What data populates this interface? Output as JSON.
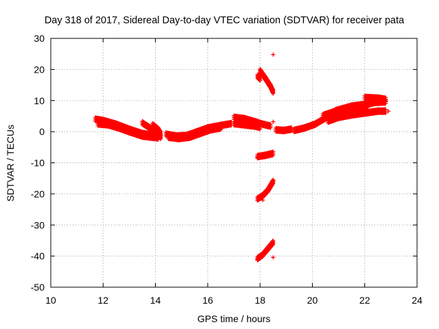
{
  "chart_data": {
    "type": "scatter",
    "title": "Day 318 of 2017, Sidereal Day-to-day VTEC variation (SDTVAR) for receiver pata",
    "xlabel": "GPS time / hours",
    "ylabel": "SDTVAR / TECUs",
    "xlim": [
      10,
      24
    ],
    "ylim": [
      -50,
      30
    ],
    "xticks": [
      10,
      12,
      14,
      16,
      18,
      20,
      22,
      24
    ],
    "yticks": [
      30,
      20,
      10,
      0,
      -10,
      -20,
      -30,
      -40,
      -50
    ],
    "grid": true,
    "legend": "none",
    "marker": "+",
    "color": "#ff0000",
    "series": [
      {
        "segments": [
          [
            [
              11.7,
              4.0
            ],
            [
              12.0,
              3.6
            ],
            [
              12.5,
              2.4
            ],
            [
              13.0,
              0.8
            ],
            [
              13.5,
              -0.6
            ],
            [
              14.0,
              -1.2
            ],
            [
              14.2,
              -1.4
            ]
          ],
          [
            [
              11.8,
              2.5
            ],
            [
              12.2,
              2.2
            ],
            [
              12.6,
              1.2
            ],
            [
              13.0,
              0.0
            ],
            [
              13.5,
              -1.4
            ],
            [
              14.1,
              -2.0
            ]
          ],
          [
            [
              13.5,
              2.8
            ],
            [
              13.8,
              1.2
            ],
            [
              14.0,
              -0.4
            ],
            [
              14.2,
              -1.8
            ]
          ],
          [
            [
              13.9,
              2.2
            ],
            [
              14.1,
              0.8
            ],
            [
              14.2,
              -0.6
            ]
          ],
          [
            [
              14.4,
              -0.8
            ],
            [
              14.8,
              -1.4
            ],
            [
              15.2,
              -1.2
            ],
            [
              15.6,
              0.0
            ],
            [
              16.0,
              1.2
            ],
            [
              16.5,
              2.0
            ],
            [
              16.9,
              2.6
            ]
          ],
          [
            [
              14.5,
              -1.8
            ],
            [
              14.9,
              -2.2
            ],
            [
              15.3,
              -1.8
            ],
            [
              15.7,
              -0.6
            ],
            [
              16.1,
              0.6
            ],
            [
              16.5,
              1.2
            ]
          ],
          [
            [
              17.0,
              4.6
            ],
            [
              17.4,
              4.2
            ],
            [
              17.8,
              3.2
            ],
            [
              18.1,
              2.4
            ],
            [
              18.4,
              1.8
            ]
          ],
          [
            [
              17.0,
              2.6
            ],
            [
              17.4,
              2.2
            ],
            [
              17.8,
              1.8
            ],
            [
              18.0,
              1.4
            ]
          ],
          [
            [
              18.6,
              0.6
            ],
            [
              18.9,
              0.4
            ],
            [
              19.2,
              0.8
            ]
          ],
          [
            [
              19.3,
              0.4
            ],
            [
              19.7,
              1.2
            ],
            [
              20.1,
              2.4
            ],
            [
              20.5,
              4.4
            ],
            [
              20.9,
              6.8
            ],
            [
              21.5,
              8.2
            ],
            [
              22.0,
              8.8
            ],
            [
              22.4,
              9.4
            ],
            [
              22.8,
              9.6
            ]
          ],
          [
            [
              20.4,
              5.2
            ],
            [
              20.9,
              6.6
            ],
            [
              21.4,
              7.6
            ],
            [
              21.9,
              8.4
            ],
            [
              22.2,
              9.0
            ]
          ],
          [
            [
              20.6,
              3.4
            ],
            [
              21.0,
              4.6
            ],
            [
              21.5,
              5.4
            ],
            [
              22.0,
              6.0
            ],
            [
              22.5,
              6.6
            ],
            [
              22.8,
              6.6
            ]
          ],
          [
            [
              20.8,
              4.8
            ],
            [
              21.3,
              5.6
            ],
            [
              21.7,
              6.2
            ],
            [
              22.1,
              7.2
            ]
          ],
          [
            [
              22.0,
              11.0
            ],
            [
              22.5,
              10.8
            ],
            [
              22.8,
              10.4
            ]
          ],
          [
            [
              17.9,
              17.8
            ],
            [
              18.0,
              17.0
            ]
          ],
          [
            [
              18.0,
              19.6
            ],
            [
              18.2,
              17.2
            ],
            [
              18.4,
              14.6
            ],
            [
              18.5,
              12.8
            ]
          ],
          [
            [
              17.9,
              -8.0
            ],
            [
              18.2,
              -7.6
            ],
            [
              18.5,
              -7.0
            ]
          ],
          [
            [
              17.9,
              -21.6
            ],
            [
              18.1,
              -20.6
            ],
            [
              18.3,
              -18.8
            ],
            [
              18.5,
              -16.0
            ]
          ],
          [
            [
              17.9,
              -40.8
            ],
            [
              18.1,
              -39.6
            ],
            [
              18.3,
              -37.6
            ],
            [
              18.5,
              -35.6
            ]
          ]
        ],
        "points": [
          [
            18.5,
            24.8
          ],
          [
            18.5,
            3.2
          ],
          [
            18.5,
            -15.8
          ],
          [
            18.5,
            -40.4
          ],
          [
            17.9,
            -8.2
          ],
          [
            18.1,
            -22.0
          ],
          [
            17.9,
            -41.0
          ],
          [
            22.9,
            6.6
          ]
        ]
      }
    ]
  }
}
